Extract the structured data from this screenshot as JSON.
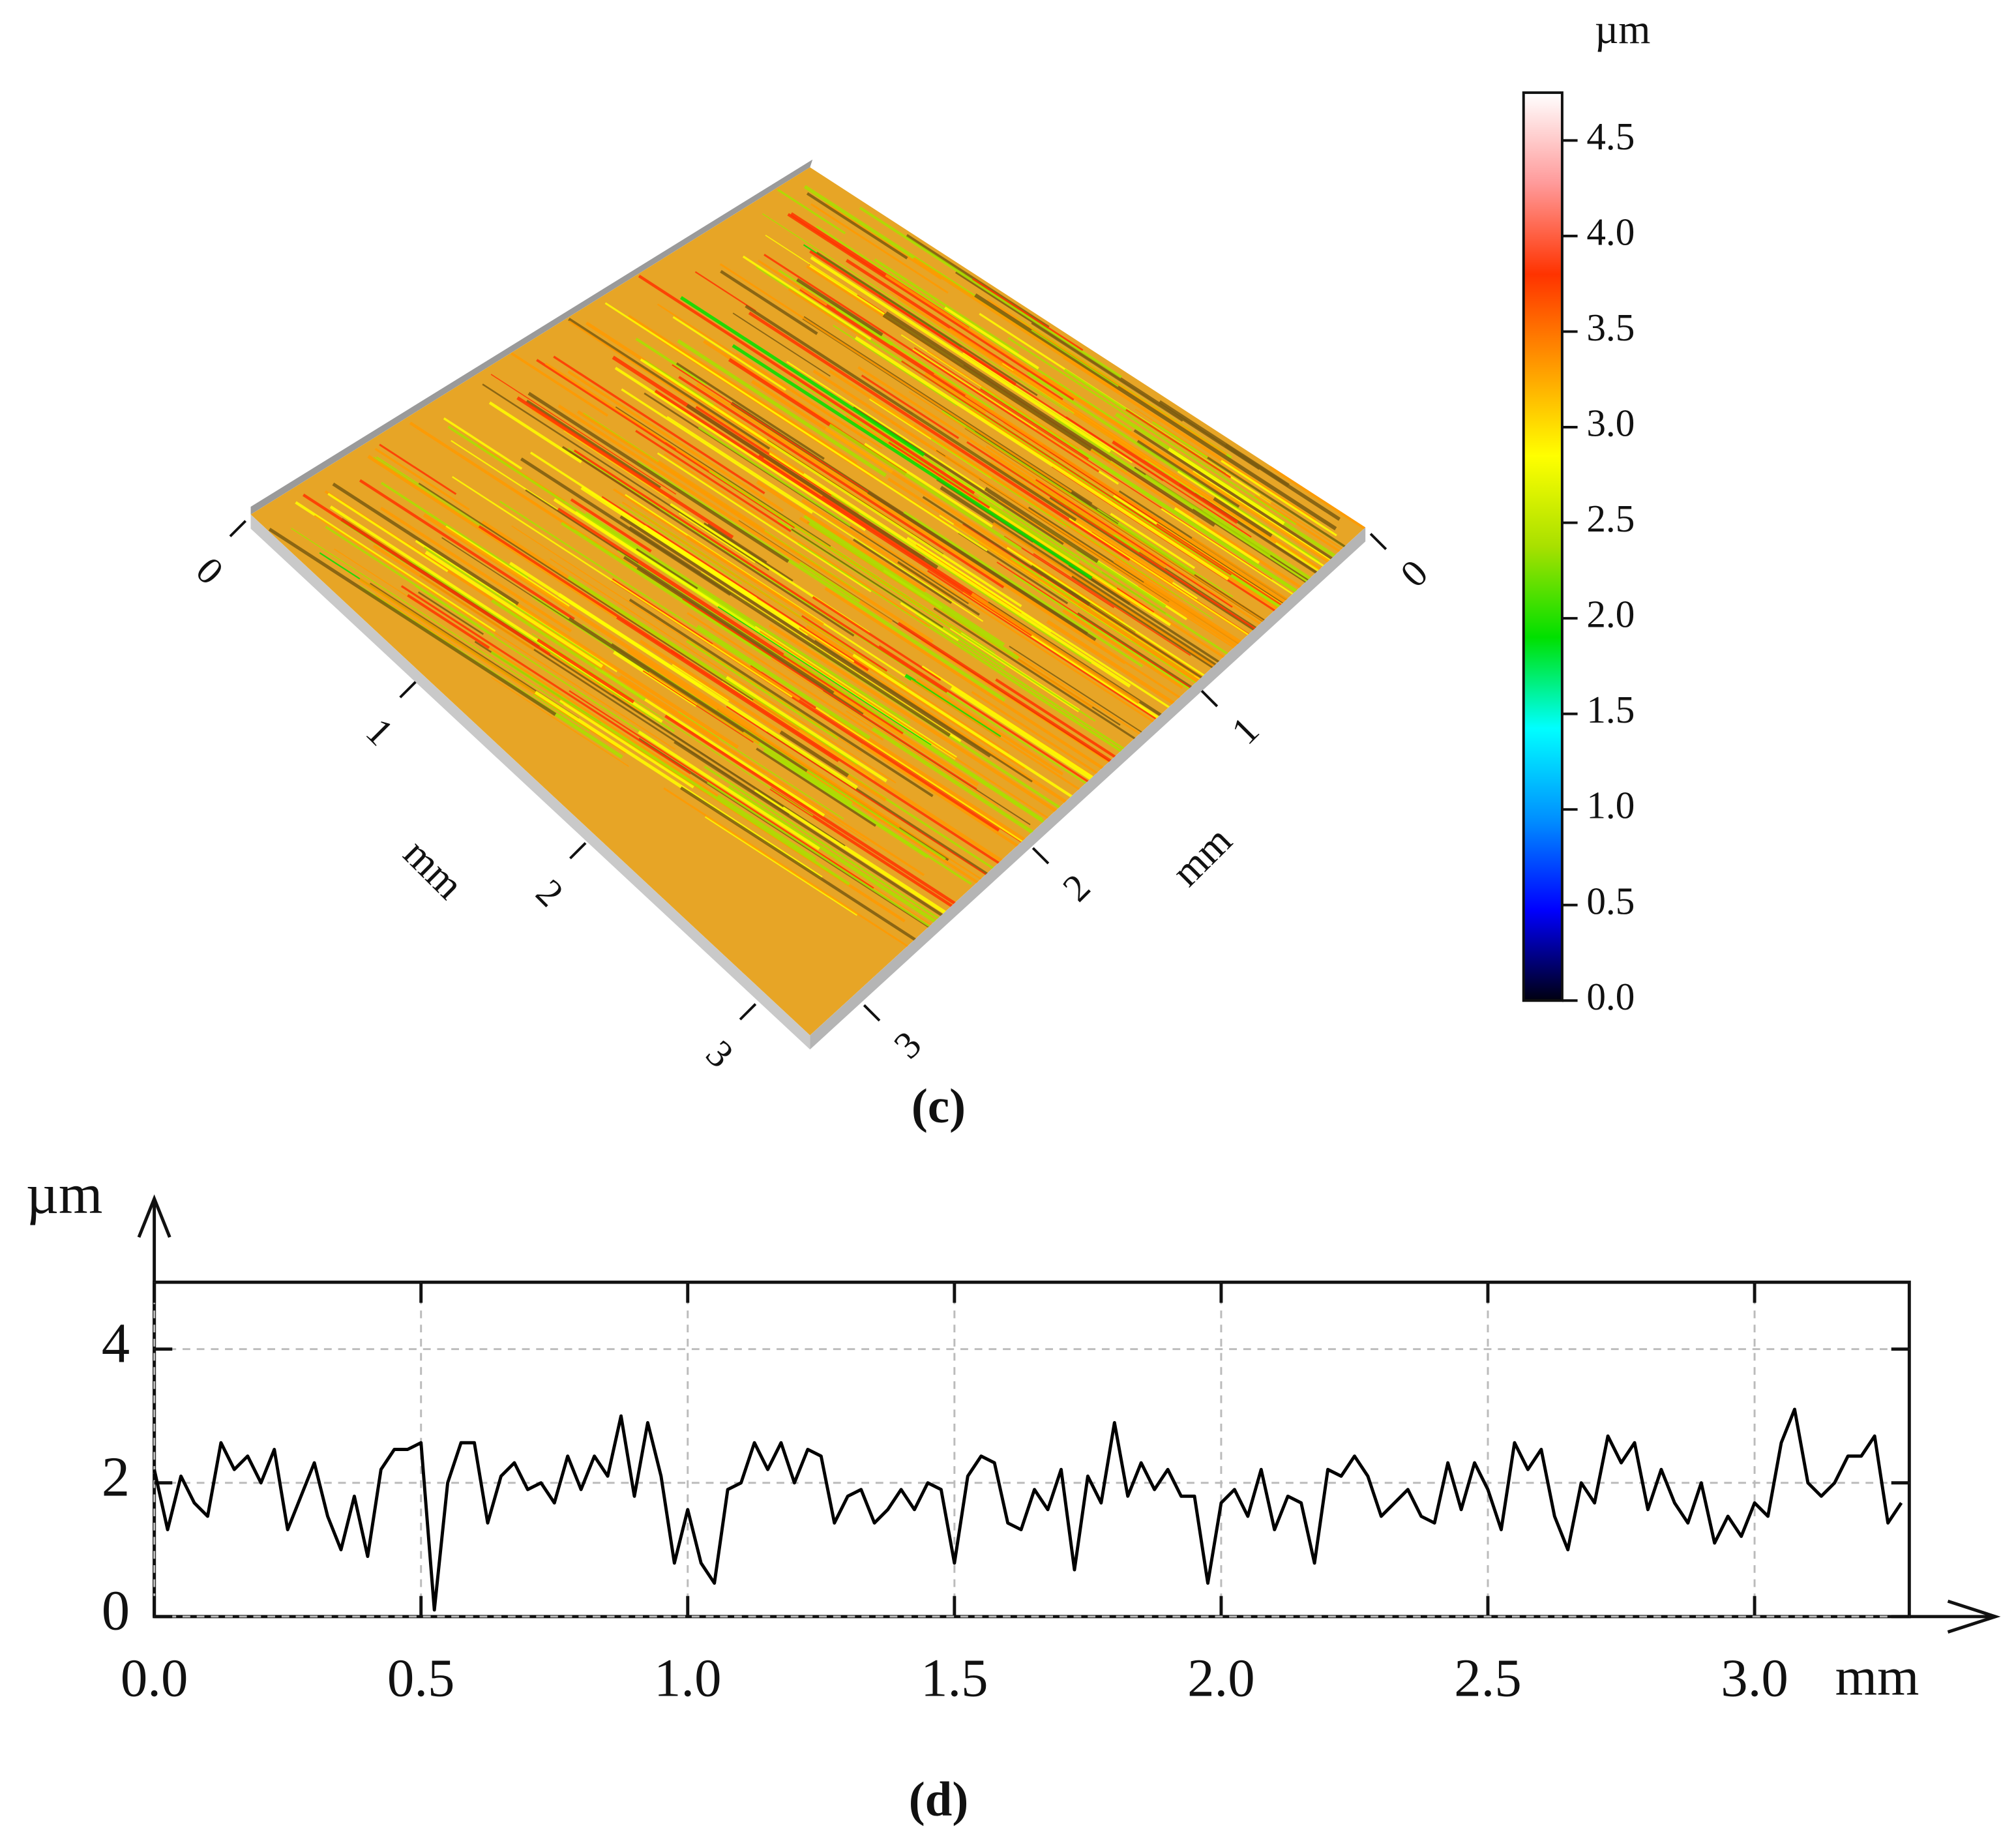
{
  "chart_data": [
    {
      "type": "surface",
      "caption": "(c)",
      "colorbar_label": "µm",
      "colorbar_lim": [
        0,
        4.75
      ],
      "colorbar_ticks": [
        {
          "value": 0,
          "label": "0.0"
        },
        {
          "value": 0.5,
          "label": "0.5"
        },
        {
          "value": 1,
          "label": "1.0"
        },
        {
          "value": 1.5,
          "label": "1.5"
        },
        {
          "value": 2,
          "label": "2.0"
        },
        {
          "value": 2.5,
          "label": "2.5"
        },
        {
          "value": 3,
          "label": "3.0"
        },
        {
          "value": 3.5,
          "label": "3.5"
        },
        {
          "value": 4,
          "label": "4.0"
        },
        {
          "value": 4.5,
          "label": "4.5"
        }
      ],
      "colorscale": [
        "#000010",
        "#0000ff",
        "#0090ff",
        "#00ffff",
        "#00e000",
        "#a8e000",
        "#ffff00",
        "#ff9900",
        "#ff3300",
        "#ff9a9a",
        "#ffffff"
      ],
      "x_label": "mm",
      "y_label": "mm",
      "xlim": [
        0,
        3.29
      ],
      "ylim": [
        0,
        3.29
      ],
      "xticks": [
        0,
        1,
        2,
        3
      ],
      "yticks": [
        0,
        1,
        2,
        3
      ]
    },
    {
      "type": "line",
      "caption": "(d)",
      "x_label": "mm",
      "y_label": "µm",
      "color": "#000000",
      "grid": true,
      "xlim": [
        0,
        3.29
      ],
      "ylim": [
        0,
        5
      ],
      "xticks": [
        {
          "value": 0,
          "label": "0.0"
        },
        {
          "value": 0.5,
          "label": "0.5"
        },
        {
          "value": 1,
          "label": "1.0"
        },
        {
          "value": 1.5,
          "label": "1.5"
        },
        {
          "value": 2,
          "label": "2.0"
        },
        {
          "value": 2.5,
          "label": "2.5"
        },
        {
          "value": 3,
          "label": "3.0"
        }
      ],
      "yticks": [
        0,
        2,
        4
      ],
      "x": [
        0,
        0.025,
        0.05,
        0.075,
        0.1,
        0.125,
        0.15,
        0.175,
        0.2,
        0.225,
        0.25,
        0.275,
        0.3,
        0.325,
        0.35,
        0.375,
        0.4,
        0.425,
        0.45,
        0.475,
        0.5,
        0.525,
        0.55,
        0.575,
        0.6,
        0.625,
        0.65,
        0.675,
        0.7,
        0.725,
        0.75,
        0.775,
        0.8,
        0.825,
        0.85,
        0.875,
        0.9,
        0.925,
        0.95,
        0.975,
        1,
        1.025,
        1.05,
        1.075,
        1.1,
        1.125,
        1.15,
        1.175,
        1.2,
        1.225,
        1.25,
        1.275,
        1.3,
        1.325,
        1.35,
        1.375,
        1.4,
        1.425,
        1.45,
        1.475,
        1.5,
        1.525,
        1.55,
        1.575,
        1.6,
        1.625,
        1.65,
        1.675,
        1.7,
        1.725,
        1.75,
        1.775,
        1.8,
        1.825,
        1.85,
        1.875,
        1.9,
        1.925,
        1.95,
        1.975,
        2,
        2.025,
        2.05,
        2.075,
        2.1,
        2.125,
        2.15,
        2.175,
        2.2,
        2.225,
        2.25,
        2.275,
        2.3,
        2.325,
        2.35,
        2.375,
        2.4,
        2.425,
        2.45,
        2.475,
        2.5,
        2.525,
        2.55,
        2.575,
        2.6,
        2.625,
        2.65,
        2.675,
        2.7,
        2.725,
        2.75,
        2.775,
        2.8,
        2.825,
        2.85,
        2.875,
        2.9,
        2.925,
        2.95,
        2.975,
        3,
        3.025,
        3.05,
        3.075,
        3.1,
        3.125,
        3.15,
        3.175,
        3.2,
        3.225,
        3.25,
        3.275
      ],
      "values": [
        2.2,
        1.3,
        2.1,
        1.7,
        1.5,
        2.6,
        2.2,
        2.4,
        2.0,
        2.5,
        1.3,
        1.8,
        2.3,
        1.5,
        1.0,
        1.8,
        0.9,
        2.2,
        2.5,
        2.5,
        2.6,
        0.1,
        2.0,
        2.6,
        2.6,
        1.4,
        2.1,
        2.3,
        1.9,
        2.0,
        1.7,
        2.4,
        1.9,
        2.4,
        2.1,
        3.0,
        1.8,
        2.9,
        2.1,
        0.8,
        1.6,
        0.8,
        0.5,
        1.9,
        2.0,
        2.6,
        2.2,
        2.6,
        2.0,
        2.5,
        2.4,
        1.4,
        1.8,
        1.9,
        1.4,
        1.6,
        1.9,
        1.6,
        2.0,
        1.9,
        0.8,
        2.1,
        2.4,
        2.3,
        1.4,
        1.3,
        1.9,
        1.6,
        2.2,
        0.7,
        2.1,
        1.7,
        2.9,
        1.8,
        2.3,
        1.9,
        2.2,
        1.8,
        1.8,
        0.5,
        1.7,
        1.9,
        1.5,
        2.2,
        1.3,
        1.8,
        1.7,
        0.8,
        2.2,
        2.1,
        2.4,
        2.1,
        1.5,
        1.7,
        1.9,
        1.5,
        1.4,
        2.3,
        1.6,
        2.3,
        1.9,
        1.3,
        2.6,
        2.2,
        2.5,
        1.5,
        1.0,
        2.0,
        1.7,
        2.7,
        2.3,
        2.6,
        1.6,
        2.2,
        1.7,
        1.4,
        2.0,
        1.1,
        1.5,
        1.2,
        1.7,
        1.5,
        2.6,
        3.1,
        2.0,
        1.8,
        2.0,
        2.4,
        2.4,
        2.7,
        1.4,
        1.7
      ]
    }
  ]
}
